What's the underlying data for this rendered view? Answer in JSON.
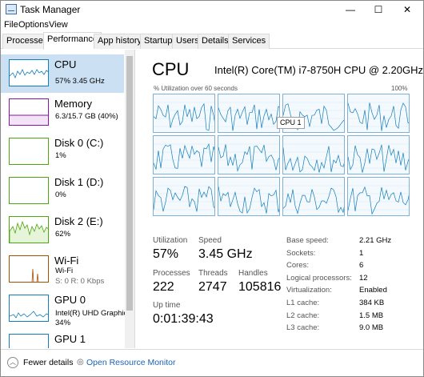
{
  "window": {
    "title": "Task Manager",
    "minimize": "—",
    "maximize": "☐",
    "close": "✕"
  },
  "menu": [
    "File",
    "Options",
    "View"
  ],
  "tabs": [
    "Processes",
    "Performance",
    "App history",
    "Startup",
    "Users",
    "Details",
    "Services"
  ],
  "active_tab": "Performance",
  "sidebar": [
    {
      "title": "CPU",
      "sub": "57% 3.45 GHz",
      "color": "#117dbb"
    },
    {
      "title": "Memory",
      "sub": "6.3/15.7 GB (40%)",
      "color": "#8b12ae"
    },
    {
      "title": "Disk 0 (C:)",
      "sub": "1%",
      "color": "#4da60c"
    },
    {
      "title": "Disk 1 (D:)",
      "sub": "0%",
      "color": "#4da60c"
    },
    {
      "title": "Disk 2 (E:)",
      "sub": "62%",
      "color": "#4da60c"
    },
    {
      "title": "Wi-Fi",
      "sub": "Wi-Fi",
      "sub2": "S: 0 R: 0 Kbps",
      "color": "#a74f01"
    },
    {
      "title": "GPU 0",
      "sub": "Intel(R) UHD Graphic",
      "sub2": "34%",
      "color": "#117dbb"
    },
    {
      "title": "GPU 1",
      "color": "#117dbb"
    }
  ],
  "main": {
    "title": "CPU",
    "model": "Intel(R) Core(TM) i7-8750H CPU @ 2.20GHz",
    "util_label": "% Utilization over 60 seconds",
    "util_max": "100%",
    "tooltip": "CPU 1",
    "stats": {
      "utilization_label": "Utilization",
      "utilization": "57%",
      "speed_label": "Speed",
      "speed": "3.45 GHz",
      "processes_label": "Processes",
      "processes": "222",
      "threads_label": "Threads",
      "threads": "2747",
      "handles_label": "Handles",
      "handles": "105816",
      "uptime_label": "Up time",
      "uptime": "0:01:39:43"
    },
    "specs": [
      {
        "label": "Base speed:",
        "value": "2.21 GHz"
      },
      {
        "label": "Sockets:",
        "value": "1"
      },
      {
        "label": "Cores:",
        "value": "6"
      },
      {
        "label": "Logical processors:",
        "value": "12"
      },
      {
        "label": "Virtualization:",
        "value": "Enabled"
      },
      {
        "label": "L1 cache:",
        "value": "384 KB"
      },
      {
        "label": "L2 cache:",
        "value": "1.5 MB"
      },
      {
        "label": "L3 cache:",
        "value": "9.0 MB"
      }
    ]
  },
  "footer": {
    "fewer_details": "Fewer details",
    "open_monitor": "Open Resource Monitor"
  },
  "icons": {
    "app": "task-manager-icon",
    "fewer": "chevron-up-icon",
    "monitor": "resource-monitor-icon"
  },
  "colors": {
    "accent": "#117dbb",
    "selected": "#cce0f3",
    "link": "#1a63b5",
    "graph_border": "#7fb1d8"
  }
}
